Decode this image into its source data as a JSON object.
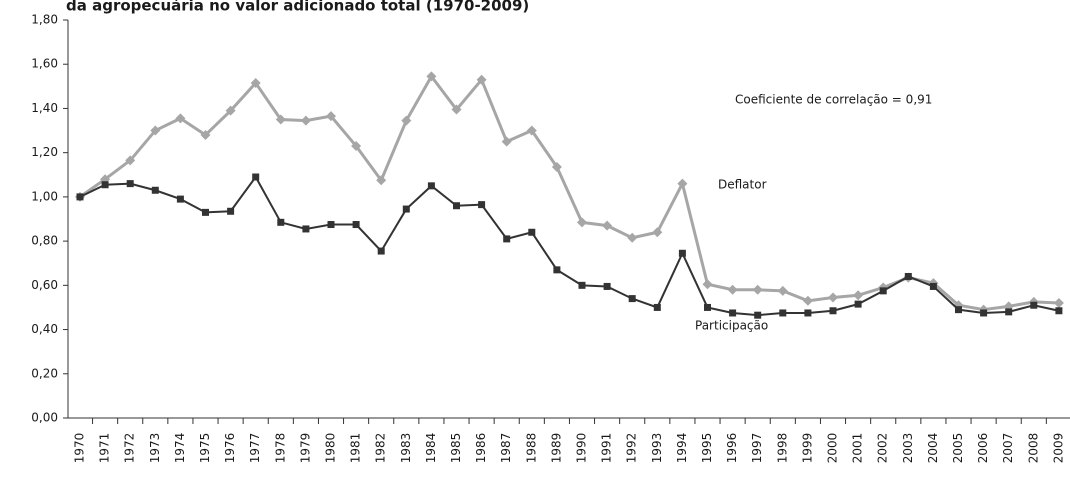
{
  "chart_data": {
    "type": "line",
    "title": "da agropecuária no valor adicionado total (1970-2009)",
    "annotation": "Coeficiente de correlação = 0,91",
    "categories": [
      "1970",
      "1971",
      "1972",
      "1973",
      "1974",
      "1975",
      "1976",
      "1977",
      "1978",
      "1979",
      "1980",
      "1981",
      "1982",
      "1983",
      "1984",
      "1985",
      "1986",
      "1987",
      "1988",
      "1989",
      "1990",
      "1991",
      "1992",
      "1993",
      "1994",
      "1995",
      "1996",
      "1997",
      "1998",
      "1999",
      "2000",
      "2001",
      "2002",
      "2003",
      "2004",
      "2005",
      "2006",
      "2007",
      "2008",
      "2009"
    ],
    "series": [
      {
        "name": "Deflator",
        "color": "#a6a6a6",
        "marker": "diamond",
        "values": [
          1.0,
          1.08,
          1.165,
          1.3,
          1.355,
          1.28,
          1.39,
          1.515,
          1.35,
          1.345,
          1.365,
          1.23,
          1.075,
          1.345,
          1.545,
          1.395,
          1.53,
          1.25,
          1.3,
          1.135,
          0.885,
          0.87,
          0.815,
          0.84,
          1.06,
          0.605,
          0.58,
          0.58,
          0.575,
          0.53,
          0.545,
          0.555,
          0.59,
          0.635,
          0.61,
          0.51,
          0.49,
          0.505,
          0.525,
          0.52
        ]
      },
      {
        "name": "Participação",
        "color": "#333333",
        "marker": "square",
        "values": [
          1.0,
          1.055,
          1.06,
          1.03,
          0.99,
          0.93,
          0.935,
          1.09,
          0.885,
          0.855,
          0.875,
          0.875,
          0.755,
          0.945,
          1.05,
          0.96,
          0.965,
          0.81,
          0.84,
          0.67,
          0.6,
          0.595,
          0.54,
          0.5,
          0.745,
          0.5,
          0.475,
          0.465,
          0.475,
          0.475,
          0.485,
          0.515,
          0.575,
          0.64,
          0.595,
          0.49,
          0.475,
          0.48,
          0.51,
          0.485
        ]
      }
    ],
    "ylim": [
      0,
      1.8
    ],
    "yticks": [
      {
        "value": 0,
        "label": "0,00"
      },
      {
        "value": 0.2,
        "label": "0,20"
      },
      {
        "value": 0.4,
        "label": "0,40"
      },
      {
        "value": 0.6,
        "label": "0,60"
      },
      {
        "value": 0.8,
        "label": "0,80"
      },
      {
        "value": 1.0,
        "label": "1,00"
      },
      {
        "value": 1.2,
        "label": "1,20"
      },
      {
        "value": 1.4,
        "label": "1,40"
      },
      {
        "value": 1.6,
        "label": "1,60"
      },
      {
        "value": 1.8,
        "label": "1,80"
      }
    ],
    "grid": false
  }
}
